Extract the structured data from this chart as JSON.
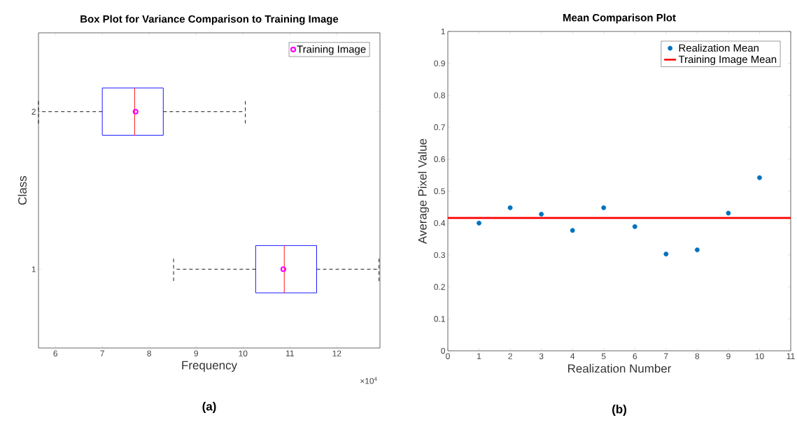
{
  "chart_data": [
    {
      "type": "box",
      "orientation": "horizontal",
      "title": "Box Plot for Variance Comparison to Training Image",
      "xlabel": "Frequency",
      "ylabel": "Class",
      "categories": [
        "2",
        "1"
      ],
      "series": [
        {
          "type": "box",
          "color": "#0000ff",
          "boxes": [
            {
              "low": 5.64,
              "q1": 7.0,
              "median": 7.69,
              "q3": 8.3,
              "high": 10.05
            },
            {
              "low": 8.52,
              "q1": 10.27,
              "median": 10.88,
              "q3": 11.57,
              "high": 12.9
            }
          ]
        },
        {
          "type": "scatter",
          "name": "Training Image",
          "color": "#ff00ff",
          "x": [
            "2",
            "1"
          ],
          "values": [
            7.71,
            10.86
          ]
        }
      ],
      "xlim": [
        5.64,
        12.92
      ],
      "xticks": [
        6,
        7,
        8,
        9,
        10,
        11,
        12
      ],
      "marker": "circle",
      "legend": "top right",
      "annotations": [
        "×10$^{4}$",
        "(a)"
      ]
    },
    {
      "type": "scatter",
      "title": "Mean Comparison Plot",
      "xlabel": "Realization Number",
      "ylabel": "Average Pixel Value",
      "series": [
        {
          "name": "Realization Mean",
          "color": "#0072bd",
          "x": [
            1,
            2,
            3,
            4,
            5,
            6,
            7,
            8,
            9,
            10
          ],
          "values": [
            0.4,
            0.448,
            0.428,
            0.377,
            0.448,
            0.389,
            0.303,
            0.316,
            0.431,
            0.542
          ]
        },
        {
          "type": "line",
          "name": "Training Image Mean",
          "color": "#ff0000",
          "marker": "none",
          "x": [
            0,
            11
          ],
          "values": [
            0.416,
            0.416
          ]
        }
      ],
      "xlim": [
        0,
        11
      ],
      "xticks": [
        0,
        1,
        2,
        3,
        4,
        5,
        6,
        7,
        8,
        9,
        10,
        11
      ],
      "ylim": [
        0,
        1
      ],
      "yticks": [
        0,
        0.1,
        0.2,
        0.3,
        0.4,
        0.5,
        0.6,
        0.7,
        0.8,
        0.9,
        1
      ],
      "marker": "circle",
      "legend": "top right",
      "annotations": [
        "(b)"
      ]
    }
  ]
}
